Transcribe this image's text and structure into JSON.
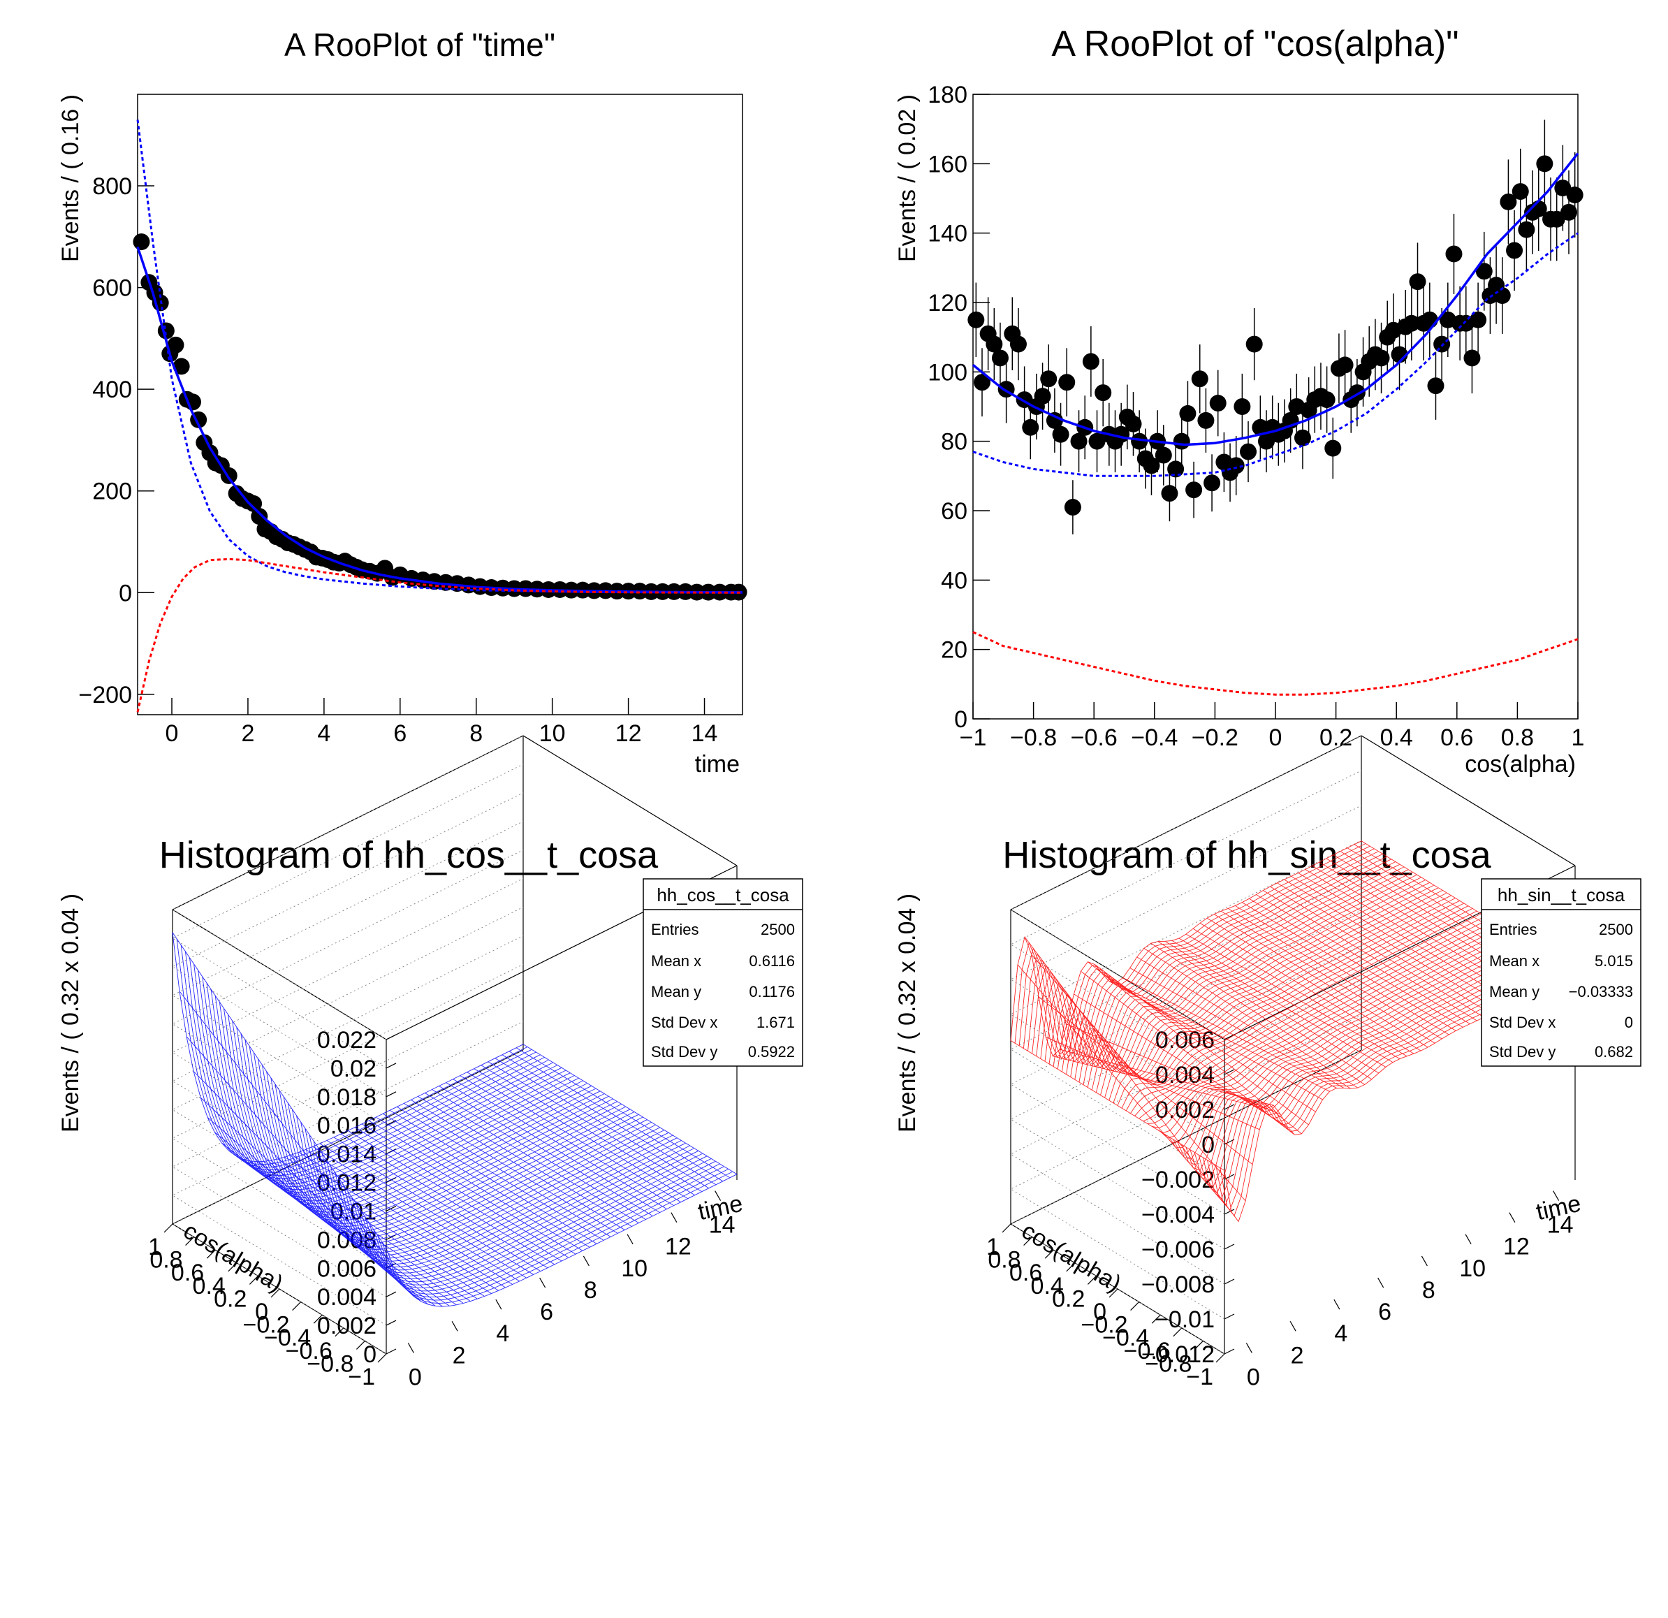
{
  "chart_data": [
    {
      "type": "scatter",
      "title": "A RooPlot of \"time\"",
      "xlabel": "time",
      "ylabel": "Events / ( 0.16 )",
      "xlim": [
        -0.9,
        15
      ],
      "ylim": [
        -240,
        980
      ],
      "xticks": [
        0,
        2,
        4,
        6,
        8,
        10,
        12,
        14
      ],
      "yticks": [
        -200,
        0,
        200,
        400,
        600,
        800
      ],
      "grid": false,
      "series": [
        {
          "style": "points",
          "color": "#000000",
          "x": [
            -0.8,
            -0.6,
            -0.45,
            -0.3,
            -0.15,
            -0.05,
            0.1,
            0.25,
            0.4,
            0.55,
            0.7,
            0.85,
            1.0,
            1.15,
            1.3,
            1.5,
            1.7,
            1.85,
            2.0,
            2.15,
            2.3,
            2.45,
            2.6,
            2.75,
            2.9,
            3.05,
            3.2,
            3.35,
            3.5,
            3.65,
            3.8,
            3.95,
            4.1,
            4.25,
            4.4,
            4.55,
            4.7,
            4.85,
            5.0,
            5.2,
            5.4,
            5.6,
            5.8,
            6.0,
            6.3,
            6.6,
            6.9,
            7.2,
            7.5,
            7.8,
            8.1,
            8.4,
            8.7,
            9.0,
            9.3,
            9.6,
            9.9,
            10.2,
            10.5,
            10.8,
            11.1,
            11.4,
            11.7,
            12.0,
            12.3,
            12.6,
            12.9,
            13.2,
            13.5,
            13.8,
            14.1,
            14.4,
            14.7,
            14.9
          ],
          "y": [
            690,
            610,
            590,
            570,
            515,
            470,
            487,
            445,
            380,
            375,
            340,
            295,
            275,
            255,
            250,
            230,
            195,
            185,
            180,
            175,
            150,
            125,
            120,
            110,
            105,
            98,
            95,
            90,
            85,
            80,
            70,
            68,
            65,
            60,
            58,
            62,
            55,
            50,
            45,
            42,
            38,
            48,
            30,
            35,
            28,
            25,
            22,
            20,
            18,
            15,
            12,
            10,
            9,
            8,
            8,
            7,
            6,
            6,
            5,
            5,
            4,
            4,
            3,
            3,
            3,
            2,
            2,
            2,
            2,
            1,
            1,
            1,
            1,
            1
          ]
        },
        {
          "style": "line",
          "color": "#0000ff",
          "x": [
            -0.9,
            -0.5,
            0,
            0.5,
            1,
            1.5,
            2,
            2.5,
            3,
            3.5,
            4,
            4.5,
            5,
            5.5,
            6,
            7,
            8,
            9,
            10,
            11,
            12,
            13,
            14,
            15
          ],
          "y": [
            680,
            590,
            455,
            360,
            285,
            225,
            178,
            142,
            112,
            88,
            70,
            56,
            44,
            35,
            28,
            18,
            11,
            7,
            4.5,
            3,
            2,
            1.3,
            0.8,
            0.5
          ]
        },
        {
          "style": "dashed",
          "color": "#0000ff",
          "x": [
            -0.9,
            -0.5,
            0,
            0.5,
            1,
            1.5,
            2,
            2.5,
            3,
            3.5,
            4,
            4.5,
            5,
            5.5,
            6,
            7,
            8,
            9,
            10,
            11,
            12,
            13,
            14,
            15
          ],
          "y": [
            930,
            690,
            420,
            255,
            160,
            105,
            72,
            52,
            40,
            32,
            26,
            22,
            18,
            15,
            12,
            8,
            5,
            3.5,
            2.2,
            1.5,
            1,
            0.7,
            0.4,
            0.2
          ]
        },
        {
          "style": "dashed",
          "color": "#ff0000",
          "x": [
            -0.9,
            -0.6,
            -0.3,
            0,
            0.3,
            0.6,
            1,
            1.5,
            2,
            2.5,
            3,
            3.5,
            4,
            4.5,
            5,
            5.5,
            6,
            7,
            8,
            9,
            10,
            11,
            12,
            13,
            14,
            15
          ],
          "y": [
            -235,
            -135,
            -60,
            -8,
            28,
            50,
            64,
            66,
            64,
            58,
            52,
            46,
            40,
            35,
            30,
            25,
            20,
            13,
            8,
            4.5,
            2.5,
            1.2,
            0.6,
            0.3,
            0.1,
            0
          ]
        }
      ]
    },
    {
      "type": "scatter",
      "title": "A RooPlot of \"cos(alpha)\"",
      "xlabel": "cos(alpha)",
      "ylabel": "Events / ( 0.02 )",
      "xlim": [
        -1,
        1
      ],
      "ylim": [
        0,
        180
      ],
      "xticks": [
        -1,
        -0.8,
        -0.6,
        -0.4,
        -0.2,
        0,
        0.2,
        0.4,
        0.6,
        0.8,
        1
      ],
      "yticks": [
        0,
        20,
        40,
        60,
        80,
        100,
        120,
        140,
        160,
        180
      ],
      "grid": false,
      "series": [
        {
          "style": "points",
          "color": "#000000",
          "errorbars": "sqrt",
          "x": [
            -0.99,
            -0.97,
            -0.95,
            -0.93,
            -0.91,
            -0.89,
            -0.87,
            -0.85,
            -0.83,
            -0.81,
            -0.79,
            -0.77,
            -0.75,
            -0.73,
            -0.71,
            -0.69,
            -0.67,
            -0.65,
            -0.63,
            -0.61,
            -0.59,
            -0.57,
            -0.55,
            -0.53,
            -0.51,
            -0.49,
            -0.47,
            -0.45,
            -0.43,
            -0.41,
            -0.39,
            -0.37,
            -0.35,
            -0.33,
            -0.31,
            -0.29,
            -0.27,
            -0.25,
            -0.23,
            -0.21,
            -0.19,
            -0.17,
            -0.15,
            -0.13,
            -0.11,
            -0.09,
            -0.07,
            -0.05,
            -0.03,
            -0.01,
            0.01,
            0.03,
            0.05,
            0.07,
            0.09,
            0.11,
            0.13,
            0.15,
            0.17,
            0.19,
            0.21,
            0.23,
            0.25,
            0.27,
            0.29,
            0.31,
            0.33,
            0.35,
            0.37,
            0.39,
            0.41,
            0.43,
            0.45,
            0.47,
            0.49,
            0.51,
            0.53,
            0.55,
            0.57,
            0.59,
            0.61,
            0.63,
            0.65,
            0.67,
            0.69,
            0.71,
            0.73,
            0.75,
            0.77,
            0.79,
            0.81,
            0.83,
            0.85,
            0.87,
            0.89,
            0.91,
            0.93,
            0.95,
            0.97,
            0.99
          ],
          "y": [
            115,
            97,
            111,
            108,
            104,
            95,
            111,
            108,
            92,
            84,
            90,
            93,
            98,
            86,
            82,
            97,
            61,
            80,
            84,
            103,
            80,
            94,
            82,
            80,
            82,
            87,
            85,
            80,
            75,
            73,
            80,
            76,
            65,
            72,
            80,
            88,
            66,
            98,
            86,
            68,
            91,
            74,
            71,
            73,
            90,
            77,
            108,
            84,
            80,
            84,
            82,
            83,
            86,
            90,
            81,
            89,
            92,
            93,
            92,
            78,
            101,
            102,
            92,
            94,
            100,
            103,
            105,
            104,
            110,
            112,
            105,
            113,
            114,
            126,
            114,
            115,
            96,
            108,
            115,
            134,
            114,
            114,
            104,
            115,
            129,
            122,
            125,
            122,
            149,
            135,
            152,
            141,
            146,
            147,
            160,
            144,
            144,
            153,
            146,
            151
          ]
        },
        {
          "style": "line",
          "color": "#0000ff",
          "x": [
            -1,
            -0.9,
            -0.8,
            -0.7,
            -0.6,
            -0.5,
            -0.4,
            -0.3,
            -0.2,
            -0.1,
            0,
            0.1,
            0.2,
            0.3,
            0.4,
            0.5,
            0.6,
            0.7,
            0.8,
            0.9,
            1
          ],
          "y": [
            102,
            95,
            90,
            86,
            83,
            81,
            80,
            79,
            79.5,
            81,
            83,
            86,
            90,
            95,
            102,
            111,
            122,
            134,
            143,
            152,
            163
          ]
        },
        {
          "style": "dashed",
          "color": "#0000ff",
          "x": [
            -1,
            -0.9,
            -0.8,
            -0.7,
            -0.6,
            -0.5,
            -0.4,
            -0.3,
            -0.2,
            -0.1,
            0,
            0.1,
            0.2,
            0.3,
            0.4,
            0.5,
            0.6,
            0.7,
            0.8,
            0.9,
            1
          ],
          "y": [
            77,
            74,
            72,
            71,
            70,
            70,
            70,
            70.5,
            71,
            73,
            76,
            79,
            83,
            88,
            95,
            103,
            112,
            121,
            127,
            134,
            140
          ]
        },
        {
          "style": "dashed",
          "color": "#ff0000",
          "x": [
            -1,
            -0.9,
            -0.8,
            -0.7,
            -0.6,
            -0.5,
            -0.4,
            -0.3,
            -0.2,
            -0.1,
            0,
            0.1,
            0.2,
            0.3,
            0.4,
            0.5,
            0.6,
            0.7,
            0.8,
            0.9,
            1
          ],
          "y": [
            25,
            21,
            19,
            17,
            15,
            13,
            11,
            9.5,
            8.5,
            7.5,
            7,
            7,
            7.5,
            8.5,
            9.5,
            11,
            13,
            15,
            17,
            20,
            23
          ]
        }
      ]
    },
    {
      "type": "surface",
      "title": "Histogram of hh_cos__t_cosa",
      "xlabel": "time",
      "ylabel": "cos(alpha)",
      "zlabel": "Events / ( 0.32 x 0.04 )",
      "xlim": [
        -1,
        15
      ],
      "ylim": [
        -1,
        1
      ],
      "zlim": [
        0,
        0.022
      ],
      "xticks": [
        0,
        2,
        4,
        6,
        8,
        10,
        12,
        14
      ],
      "yticks": [
        -1,
        -0.8,
        -0.6,
        -0.4,
        -0.2,
        0,
        0.2,
        0.4,
        0.6,
        0.8,
        1
      ],
      "zticks": [
        0,
        0.002,
        0.004,
        0.006,
        0.008,
        0.01,
        0.012,
        0.014,
        0.016,
        0.018,
        0.02,
        0.022
      ],
      "ztick_labels": [
        "0",
        "0.002",
        "0.004",
        "0.006",
        "0.008",
        "0.01",
        "0.012",
        "0.014",
        "0.016",
        "0.018",
        "0.02",
        "0.022"
      ],
      "ytick_labels": [
        "−1",
        "−0.8",
        "−0.6",
        "−0.4",
        "−0.2",
        "0",
        "0.2",
        "0.4",
        "0.6",
        "0.8",
        "1"
      ],
      "mesh_color": "#0000ff",
      "model": "cos",
      "stats": {
        "name": "hh_cos__t_cosa",
        "rows": [
          {
            "label": "Entries",
            "value": "2500"
          },
          {
            "label": "Mean x",
            "value": "0.6116"
          },
          {
            "label": "Mean y",
            "value": "0.1176"
          },
          {
            "label": "Std Dev x",
            "value": "1.671"
          },
          {
            "label": "Std Dev y",
            "value": "0.5922"
          }
        ]
      }
    },
    {
      "type": "surface",
      "title": "Histogram of hh_sin__t_cosa",
      "xlabel": "time",
      "ylabel": "cos(alpha)",
      "zlabel": "Events / ( 0.32 x 0.04 )",
      "xlim": [
        -1,
        15
      ],
      "ylim": [
        -1,
        1
      ],
      "zlim": [
        -0.012,
        0.006
      ],
      "xticks": [
        0,
        2,
        4,
        6,
        8,
        10,
        12,
        14
      ],
      "yticks": [
        -1,
        -0.8,
        -0.6,
        -0.4,
        -0.2,
        0,
        0.2,
        0.4,
        0.6,
        0.8,
        1
      ],
      "zticks": [
        -0.012,
        -0.01,
        -0.008,
        -0.006,
        -0.004,
        -0.002,
        0,
        0.002,
        0.004,
        0.006
      ],
      "ztick_labels": [
        "−0.012",
        "−0.01",
        "−0.008",
        "−0.006",
        "−0.004",
        "−0.002",
        "0",
        "0.002",
        "0.004",
        "0.006"
      ],
      "ytick_labels": [
        "−1",
        "−0.8",
        "−0.6",
        "−0.4",
        "−0.2",
        "0",
        "0.2",
        "0.4",
        "0.6",
        "0.8",
        "1"
      ],
      "mesh_color": "#ff0000",
      "model": "sin",
      "stats": {
        "name": "hh_sin__t_cosa",
        "rows": [
          {
            "label": "Entries",
            "value": "2500"
          },
          {
            "label": "Mean x",
            "value": "5.015"
          },
          {
            "label": "Mean y",
            "value": "−0.03333"
          },
          {
            "label": "Std Dev x",
            "value": "0"
          },
          {
            "label": "Std Dev y",
            "value": "0.682"
          }
        ]
      }
    }
  ]
}
